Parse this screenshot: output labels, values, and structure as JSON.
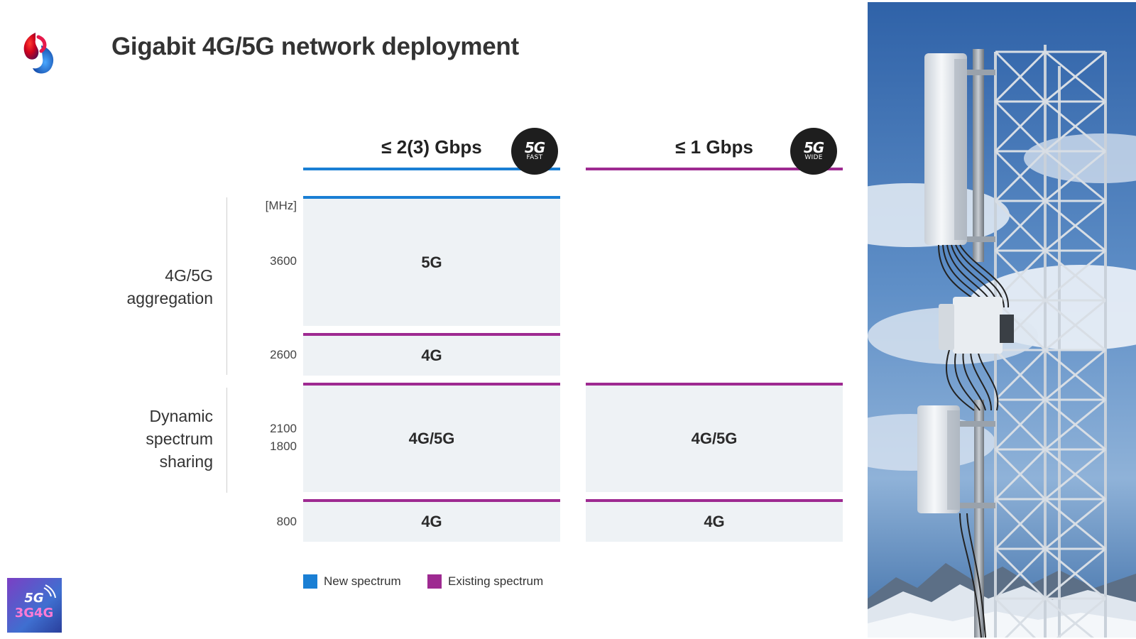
{
  "title": "Gigabit 4G/5G network deployment",
  "columns": [
    {
      "header": "≤ 2(3) Gbps",
      "badge_top": "5G",
      "badge_bottom": "FAST",
      "line_color": "#1a7fd4"
    },
    {
      "header": "≤ 1 Gbps",
      "badge_top": "5G",
      "badge_bottom": "WIDE",
      "line_color": "#9e2a91"
    }
  ],
  "unit_label": "[MHz]",
  "frequencies": {
    "f3600": "3600",
    "f2600": "2600",
    "f2100": "2100",
    "f1800": "1800",
    "f800": "800"
  },
  "groups": {
    "aggregation": [
      "4G/5G",
      "aggregation"
    ],
    "dss": [
      "Dynamic",
      "spectrum",
      "sharing"
    ]
  },
  "blocks": {
    "c1_5g": "5G",
    "c1_2600": "4G",
    "c1_dss": "4G/5G",
    "c1_800": "4G",
    "c2_dss": "4G/5G",
    "c2_800": "4G"
  },
  "legend": {
    "new": {
      "label": "New spectrum",
      "color": "#1a7fd4"
    },
    "existing": {
      "label": "Existing spectrum",
      "color": "#9e2a91"
    }
  },
  "corner_badge": {
    "top": "5G",
    "bottom": "3G4G"
  },
  "icons": [
    "swisscom-logo-icon",
    "cell-tower-photo",
    "3g4g-logo-icon"
  ]
}
